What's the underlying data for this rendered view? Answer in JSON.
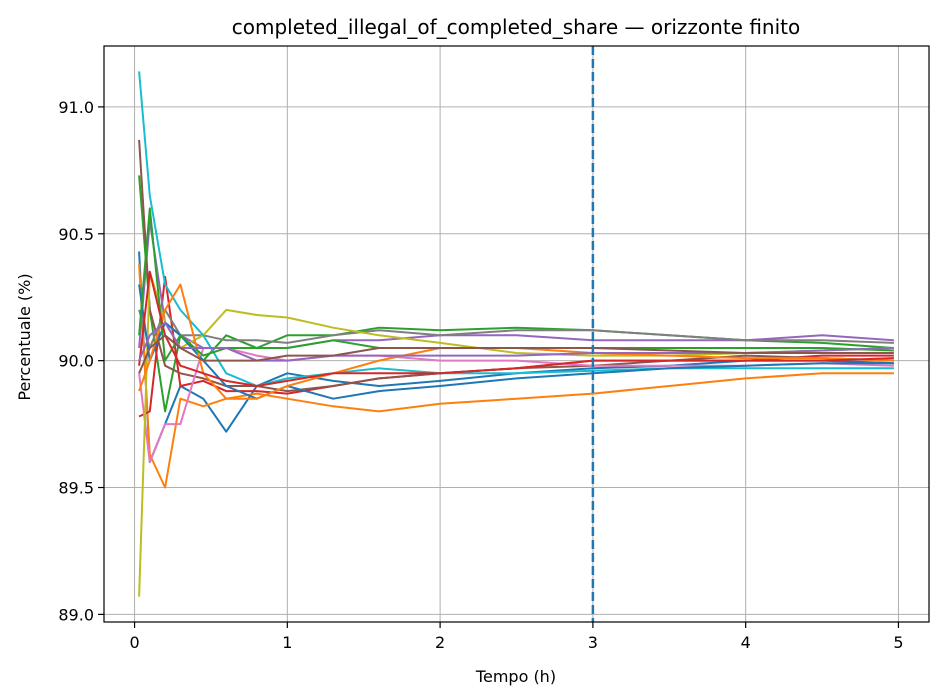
{
  "chart_data": {
    "type": "line",
    "title": "completed_illegal_of_completed_share — orizzonte finito",
    "xlabel": "Tempo (h)",
    "ylabel": "Percentuale (%)",
    "xlim": [
      -0.2,
      5.2
    ],
    "ylim": [
      88.97,
      91.24
    ],
    "xticks": [
      0,
      1,
      2,
      3,
      4,
      5
    ],
    "xtick_labels": [
      "0",
      "1",
      "2",
      "3",
      "4",
      "5"
    ],
    "yticks": [
      89.0,
      89.5,
      90.0,
      90.5,
      91.0
    ],
    "ytick_labels": [
      "89.0",
      "89.5",
      "90.0",
      "90.5",
      "91.0"
    ],
    "grid": true,
    "vline": {
      "x": 3.0,
      "style": "dashed",
      "color": "#1f77b4"
    },
    "series": [
      {
        "color": "#1f77b4",
        "x": [
          0.03,
          0.1,
          0.2,
          0.3,
          0.45,
          0.6,
          0.8,
          1.0,
          1.3,
          1.6,
          2.0,
          2.5,
          3.0,
          3.5,
          4.0,
          4.5,
          4.97
        ],
        "y": [
          90.43,
          89.6,
          89.75,
          89.9,
          89.85,
          89.72,
          89.9,
          89.95,
          89.92,
          89.9,
          89.92,
          89.95,
          89.97,
          89.98,
          90.0,
          90.0,
          89.99
        ]
      },
      {
        "color": "#ff7f0e",
        "x": [
          0.03,
          0.1,
          0.2,
          0.3,
          0.45,
          0.6,
          0.8,
          1.0,
          1.3,
          1.6,
          2.0,
          2.5,
          3.0,
          3.5,
          4.0,
          4.5,
          4.97
        ],
        "y": [
          90.38,
          89.63,
          89.5,
          89.85,
          89.82,
          89.85,
          89.87,
          89.85,
          89.82,
          89.8,
          89.83,
          89.85,
          89.87,
          89.9,
          89.93,
          89.95,
          89.95
        ]
      },
      {
        "color": "#2ca02c",
        "x": [
          0.03,
          0.1,
          0.2,
          0.3,
          0.45,
          0.6,
          0.8,
          1.0,
          1.3,
          1.6,
          2.0,
          2.5,
          3.0,
          3.5,
          4.0,
          4.5,
          4.97
        ],
        "y": [
          90.73,
          90.2,
          89.8,
          90.1,
          90.0,
          90.1,
          90.05,
          90.1,
          90.1,
          90.13,
          90.12,
          90.13,
          90.12,
          90.1,
          90.08,
          90.07,
          90.05
        ]
      },
      {
        "color": "#d62728",
        "x": [
          0.03,
          0.1,
          0.2,
          0.3,
          0.45,
          0.6,
          0.8,
          1.0,
          1.3,
          1.6,
          2.0,
          2.5,
          3.0,
          3.5,
          4.0,
          4.5,
          4.97
        ],
        "y": [
          89.78,
          89.8,
          90.33,
          89.9,
          89.92,
          89.88,
          89.88,
          89.87,
          89.9,
          89.93,
          89.95,
          89.97,
          90.0,
          90.0,
          90.0,
          90.02,
          90.02
        ]
      },
      {
        "color": "#9467bd",
        "x": [
          0.03,
          0.1,
          0.2,
          0.3,
          0.45,
          0.6,
          0.8,
          1.0,
          1.3,
          1.6,
          2.0,
          2.5,
          3.0,
          3.5,
          4.0,
          4.5,
          4.97
        ],
        "y": [
          90.05,
          90.55,
          90.15,
          90.1,
          90.05,
          90.05,
          90.05,
          90.05,
          90.08,
          90.08,
          90.1,
          90.1,
          90.08,
          90.08,
          90.08,
          90.1,
          90.08
        ]
      },
      {
        "color": "#8c564b",
        "x": [
          0.03,
          0.1,
          0.2,
          0.3,
          0.45,
          0.6,
          0.8,
          1.0,
          1.3,
          1.6,
          2.0,
          2.5,
          3.0,
          3.5,
          4.0,
          4.5,
          4.97
        ],
        "y": [
          90.87,
          90.2,
          89.98,
          89.95,
          89.93,
          89.9,
          89.9,
          89.88,
          89.9,
          89.93,
          89.95,
          89.97,
          89.98,
          90.0,
          90.02,
          90.01,
          90.0
        ]
      },
      {
        "color": "#e377c2",
        "x": [
          0.03,
          0.1,
          0.2,
          0.3,
          0.45,
          0.6,
          0.8,
          1.0,
          1.3,
          1.6,
          2.0,
          2.5,
          3.0,
          3.5,
          4.0,
          4.5,
          4.97
        ],
        "y": [
          89.95,
          89.6,
          89.75,
          89.75,
          90.05,
          90.05,
          90.02,
          90.0,
          90.02,
          90.02,
          90.0,
          90.0,
          89.98,
          89.98,
          89.98,
          89.99,
          89.98
        ]
      },
      {
        "color": "#7f7f7f",
        "x": [
          0.03,
          0.1,
          0.2,
          0.3,
          0.45,
          0.6,
          0.8,
          1.0,
          1.3,
          1.6,
          2.0,
          2.5,
          3.0,
          3.5,
          4.0,
          4.5,
          4.97
        ],
        "y": [
          90.2,
          90.05,
          90.2,
          90.1,
          90.1,
          90.08,
          90.08,
          90.07,
          90.1,
          90.12,
          90.1,
          90.12,
          90.12,
          90.1,
          90.08,
          90.08,
          90.07
        ]
      },
      {
        "color": "#bcbd22",
        "x": [
          0.03,
          0.1,
          0.2,
          0.3,
          0.45,
          0.6,
          0.8,
          1.0,
          1.3,
          1.6,
          2.0,
          2.5,
          3.0,
          3.5,
          4.0,
          4.5,
          4.97
        ],
        "y": [
          89.07,
          90.35,
          90.15,
          90.05,
          90.1,
          90.2,
          90.18,
          90.17,
          90.13,
          90.1,
          90.07,
          90.03,
          90.02,
          90.02,
          90.03,
          90.04,
          90.05
        ]
      },
      {
        "color": "#17becf",
        "x": [
          0.03,
          0.1,
          0.2,
          0.3,
          0.45,
          0.6,
          0.8,
          1.0,
          1.3,
          1.6,
          2.0,
          2.5,
          3.0,
          3.5,
          4.0,
          4.5,
          4.97
        ],
        "y": [
          91.14,
          90.65,
          90.3,
          90.2,
          90.1,
          89.95,
          89.9,
          89.93,
          89.95,
          89.97,
          89.95,
          89.95,
          89.96,
          89.97,
          89.97,
          89.97,
          89.97
        ]
      },
      {
        "color": "#1f77b4",
        "x": [
          0.03,
          0.1,
          0.2,
          0.3,
          0.45,
          0.6,
          0.8,
          1.0,
          1.3,
          1.6,
          2.0,
          2.5,
          3.0,
          3.5,
          4.0,
          4.5,
          4.97
        ],
        "y": [
          90.3,
          90.0,
          90.15,
          90.1,
          90.0,
          89.9,
          89.85,
          89.9,
          89.85,
          89.88,
          89.9,
          89.93,
          89.95,
          89.97,
          89.98,
          89.99,
          89.99
        ]
      },
      {
        "color": "#ff7f0e",
        "x": [
          0.03,
          0.1,
          0.2,
          0.3,
          0.45,
          0.6,
          0.8,
          1.0,
          1.3,
          1.6,
          2.0,
          2.5,
          3.0,
          3.5,
          4.0,
          4.5,
          4.97
        ],
        "y": [
          89.88,
          90.0,
          90.2,
          90.3,
          89.95,
          89.85,
          89.85,
          89.9,
          89.95,
          90.0,
          90.05,
          90.05,
          90.03,
          90.02,
          90.01,
          90.01,
          90.0
        ]
      },
      {
        "color": "#2ca02c",
        "x": [
          0.03,
          0.1,
          0.2,
          0.3,
          0.45,
          0.6,
          0.8,
          1.0,
          1.3,
          1.6,
          2.0,
          2.5,
          3.0,
          3.5,
          4.0,
          4.5,
          4.97
        ],
        "y": [
          90.1,
          90.6,
          90.0,
          90.1,
          90.02,
          90.05,
          90.05,
          90.05,
          90.08,
          90.05,
          90.05,
          90.05,
          90.05,
          90.05,
          90.05,
          90.05,
          90.04
        ]
      },
      {
        "color": "#d62728",
        "x": [
          0.03,
          0.1,
          0.2,
          0.3,
          0.45,
          0.6,
          0.8,
          1.0,
          1.3,
          1.6,
          2.0,
          2.5,
          3.0,
          3.5,
          4.0,
          4.5,
          4.97
        ],
        "y": [
          89.98,
          90.35,
          90.1,
          89.98,
          89.95,
          89.92,
          89.9,
          89.92,
          89.95,
          89.95,
          89.95,
          89.97,
          90.0,
          90.0,
          90.0,
          90.0,
          90.01
        ]
      },
      {
        "color": "#9467bd",
        "x": [
          0.03,
          0.1,
          0.2,
          0.3,
          0.45,
          0.6,
          0.8,
          1.0,
          1.3,
          1.6,
          2.0,
          2.5,
          3.0,
          3.5,
          4.0,
          4.5,
          4.97
        ],
        "y": [
          90.0,
          90.1,
          90.15,
          90.05,
          90.05,
          90.05,
          90.0,
          90.0,
          90.02,
          90.02,
          90.02,
          90.02,
          90.03,
          90.03,
          90.03,
          90.04,
          90.05
        ]
      },
      {
        "color": "#8c564b",
        "x": [
          0.03,
          0.1,
          0.2,
          0.3,
          0.45,
          0.6,
          0.8,
          1.0,
          1.3,
          1.6,
          2.0,
          2.5,
          3.0,
          3.5,
          4.0,
          4.5,
          4.97
        ],
        "y": [
          89.95,
          90.05,
          90.1,
          90.05,
          90.0,
          90.0,
          90.0,
          90.02,
          90.02,
          90.05,
          90.05,
          90.05,
          90.05,
          90.04,
          90.03,
          90.03,
          90.03
        ]
      }
    ]
  }
}
